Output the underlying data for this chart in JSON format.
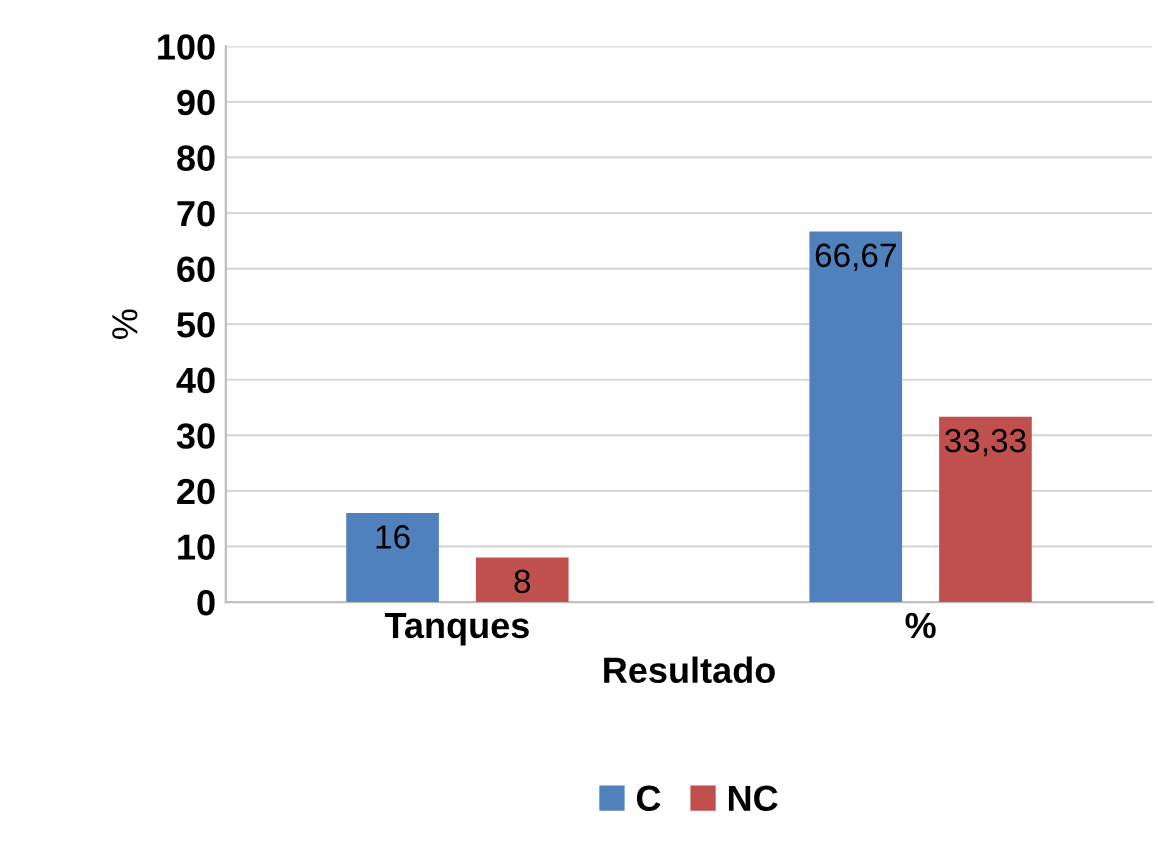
{
  "chart_data": {
    "type": "bar",
    "xlabel": "Resultado",
    "ylabel": "%",
    "categories": [
      "Tanques",
      "%"
    ],
    "series": [
      {
        "name": "C",
        "color": "#4f81bd",
        "values": [
          16,
          66.67
        ],
        "value_labels": [
          "16",
          "66,67"
        ]
      },
      {
        "name": "NC",
        "color": "#c0504d",
        "values": [
          8,
          33.33
        ],
        "value_labels": [
          "8",
          "33,33"
        ]
      }
    ],
    "ylim": [
      0,
      100
    ],
    "yticks": [
      0,
      10,
      20,
      30,
      40,
      50,
      60,
      70,
      80,
      90,
      100
    ],
    "grid": "y",
    "legend": "bottom"
  }
}
